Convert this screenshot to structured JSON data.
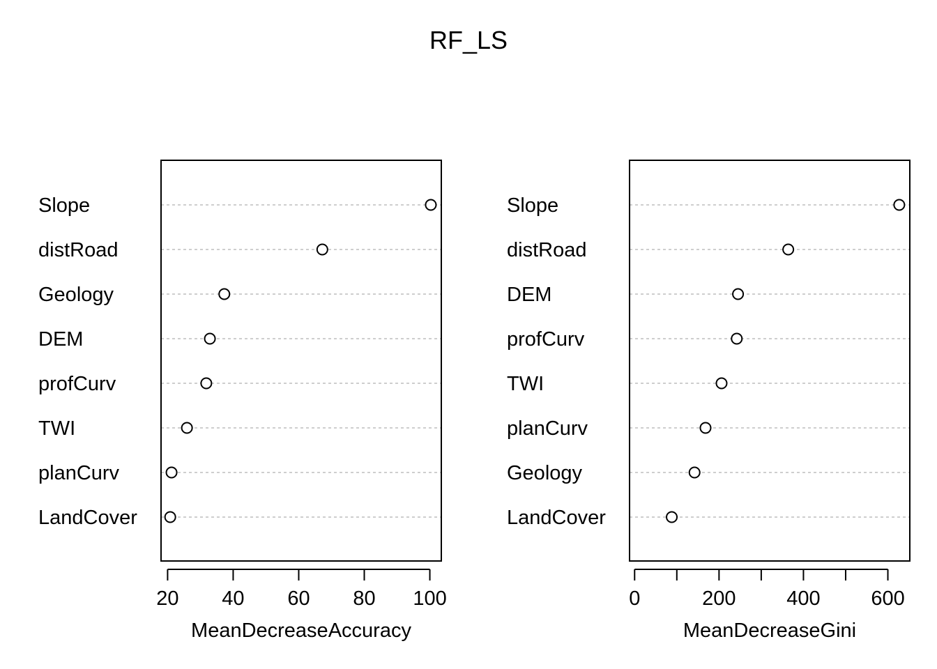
{
  "title": "RF_LS",
  "chart_data": [
    {
      "type": "scatter",
      "style": "dotchart",
      "xlabel": "MeanDecreaseAccuracy",
      "xlim": [
        18,
        103.5
      ],
      "xticks": [
        20,
        40,
        60,
        80,
        100
      ],
      "grid": false,
      "categories": [
        "Slope",
        "distRoad",
        "Geology",
        "DEM",
        "profCurv",
        "TWI",
        "planCurv",
        "LandCover"
      ],
      "values": [
        100.3,
        67.2,
        37.3,
        32.9,
        31.8,
        25.9,
        21.2,
        20.8
      ]
    },
    {
      "type": "scatter",
      "style": "dotchart",
      "xlabel": "MeanDecreaseGini",
      "xlim": [
        -12,
        652
      ],
      "xticks": [
        0,
        100,
        200,
        300,
        400,
        500,
        600
      ],
      "xtick_labels": [
        "0",
        "",
        "200",
        "",
        "400",
        "",
        "600"
      ],
      "grid": false,
      "categories": [
        "Slope",
        "distRoad",
        "DEM",
        "profCurv",
        "TWI",
        "planCurv",
        "Geology",
        "LandCover"
      ],
      "values": [
        627,
        364,
        245,
        242,
        206,
        168,
        142,
        88
      ]
    }
  ]
}
